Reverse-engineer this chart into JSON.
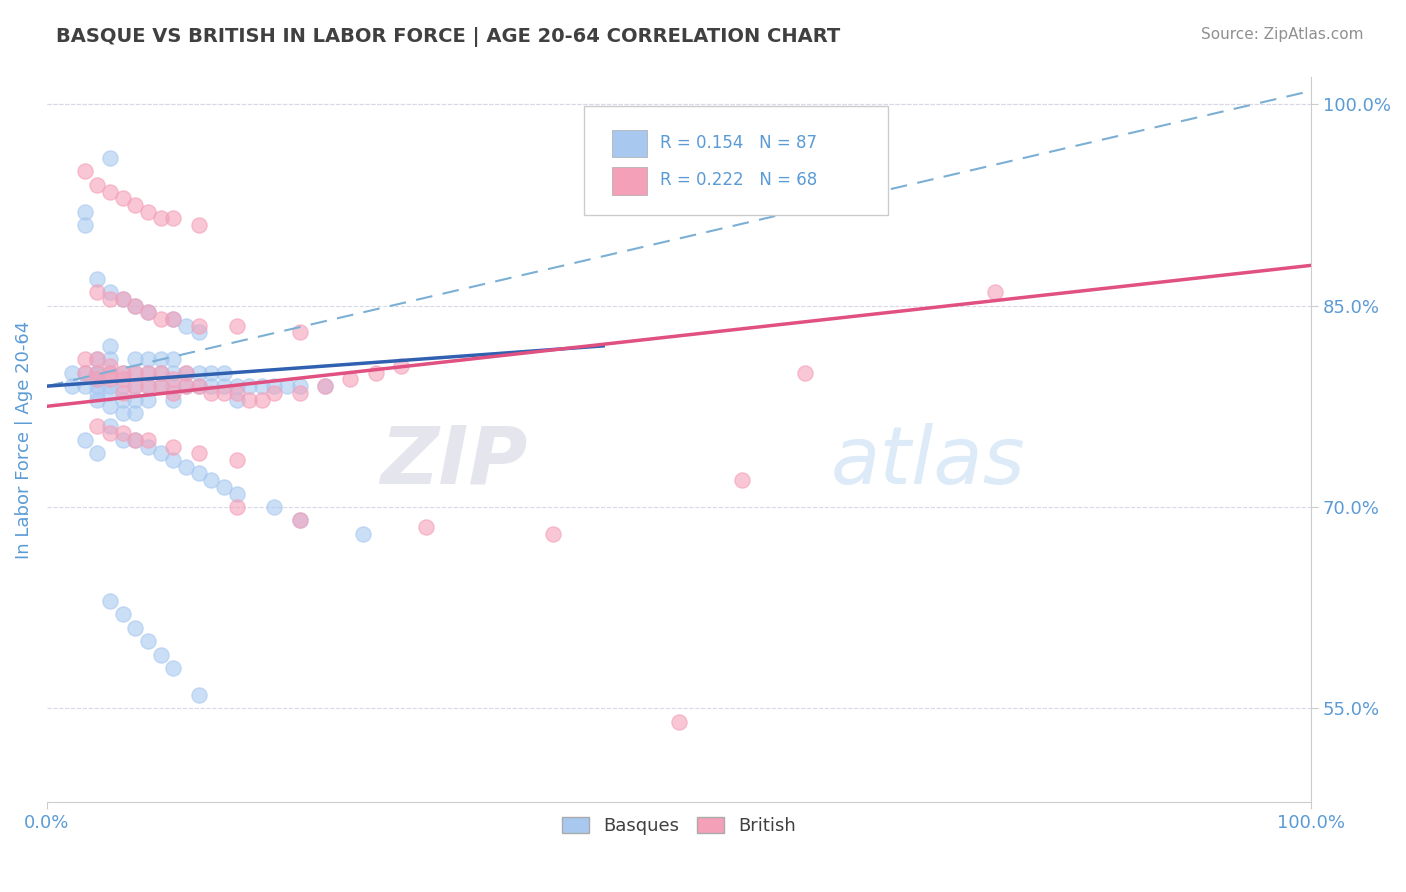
{
  "title": "BASQUE VS BRITISH IN LABOR FORCE | AGE 20-64 CORRELATION CHART",
  "source": "Source: ZipAtlas.com",
  "ylabel": "In Labor Force | Age 20-64",
  "xlim": [
    0.0,
    1.0
  ],
  "ylim": [
    0.48,
    1.02
  ],
  "x_ticks": [
    0.0,
    1.0
  ],
  "x_tick_labels": [
    "0.0%",
    "100.0%"
  ],
  "y_ticks": [
    0.55,
    0.7,
    0.85,
    1.0
  ],
  "y_tick_labels": [
    "55.0%",
    "70.0%",
    "85.0%",
    "100.0%"
  ],
  "basque_color": "#A8C8F0",
  "british_color": "#F4A0B8",
  "basque_line_color": "#3060B0",
  "british_line_color": "#E05080",
  "dashed_line_color": "#7BAFD4",
  "R_basque": 0.154,
  "N_basque": 87,
  "R_british": 0.222,
  "N_british": 68,
  "title_color": "#404040",
  "source_color": "#909090",
  "axis_label_color": "#5B9BD5",
  "tick_label_color": "#5B9BD5",
  "background_color": "#FFFFFF",
  "grid_color": "#D8D8E8",
  "basque_scatter_x": [
    0.02,
    0.02,
    0.03,
    0.03,
    0.03,
    0.03,
    0.04,
    0.04,
    0.04,
    0.04,
    0.04,
    0.04,
    0.04,
    0.05,
    0.05,
    0.05,
    0.05,
    0.05,
    0.05,
    0.05,
    0.06,
    0.06,
    0.06,
    0.06,
    0.07,
    0.07,
    0.07,
    0.07,
    0.07,
    0.08,
    0.08,
    0.08,
    0.08,
    0.09,
    0.09,
    0.09,
    0.1,
    0.1,
    0.1,
    0.1,
    0.11,
    0.11,
    0.12,
    0.12,
    0.13,
    0.13,
    0.14,
    0.14,
    0.15,
    0.15,
    0.16,
    0.17,
    0.18,
    0.19,
    0.2,
    0.22,
    0.03,
    0.04,
    0.05,
    0.06,
    0.07,
    0.08,
    0.09,
    0.1,
    0.11,
    0.12,
    0.13,
    0.14,
    0.04,
    0.05,
    0.06,
    0.07,
    0.08,
    0.1,
    0.11,
    0.12,
    0.15,
    0.18,
    0.2,
    0.25,
    0.05,
    0.06,
    0.07,
    0.08,
    0.09,
    0.1,
    0.12
  ],
  "basque_scatter_y": [
    0.8,
    0.79,
    0.92,
    0.91,
    0.8,
    0.79,
    0.8,
    0.795,
    0.785,
    0.78,
    0.81,
    0.8,
    0.79,
    0.82,
    0.81,
    0.8,
    0.79,
    0.785,
    0.775,
    0.96,
    0.8,
    0.79,
    0.78,
    0.77,
    0.81,
    0.8,
    0.79,
    0.78,
    0.77,
    0.81,
    0.8,
    0.79,
    0.78,
    0.81,
    0.8,
    0.79,
    0.81,
    0.8,
    0.79,
    0.78,
    0.8,
    0.79,
    0.8,
    0.79,
    0.8,
    0.79,
    0.8,
    0.79,
    0.79,
    0.78,
    0.79,
    0.79,
    0.79,
    0.79,
    0.79,
    0.79,
    0.75,
    0.74,
    0.76,
    0.75,
    0.75,
    0.745,
    0.74,
    0.735,
    0.73,
    0.725,
    0.72,
    0.715,
    0.87,
    0.86,
    0.855,
    0.85,
    0.845,
    0.84,
    0.835,
    0.83,
    0.71,
    0.7,
    0.69,
    0.68,
    0.63,
    0.62,
    0.61,
    0.6,
    0.59,
    0.58,
    0.56
  ],
  "british_scatter_x": [
    0.03,
    0.03,
    0.04,
    0.04,
    0.04,
    0.05,
    0.05,
    0.05,
    0.06,
    0.06,
    0.06,
    0.07,
    0.07,
    0.08,
    0.08,
    0.09,
    0.09,
    0.1,
    0.1,
    0.11,
    0.11,
    0.12,
    0.13,
    0.14,
    0.15,
    0.16,
    0.17,
    0.18,
    0.2,
    0.22,
    0.24,
    0.26,
    0.28,
    0.04,
    0.05,
    0.06,
    0.07,
    0.08,
    0.09,
    0.1,
    0.12,
    0.15,
    0.2,
    0.04,
    0.05,
    0.06,
    0.07,
    0.08,
    0.1,
    0.12,
    0.15,
    0.03,
    0.04,
    0.05,
    0.06,
    0.07,
    0.08,
    0.09,
    0.1,
    0.12,
    0.15,
    0.2,
    0.3,
    0.4,
    0.5,
    0.55,
    0.6,
    0.75
  ],
  "british_scatter_y": [
    0.81,
    0.8,
    0.81,
    0.8,
    0.795,
    0.805,
    0.8,
    0.795,
    0.8,
    0.795,
    0.785,
    0.8,
    0.79,
    0.8,
    0.79,
    0.8,
    0.79,
    0.795,
    0.785,
    0.8,
    0.79,
    0.79,
    0.785,
    0.785,
    0.785,
    0.78,
    0.78,
    0.785,
    0.785,
    0.79,
    0.795,
    0.8,
    0.805,
    0.86,
    0.855,
    0.855,
    0.85,
    0.845,
    0.84,
    0.84,
    0.835,
    0.835,
    0.83,
    0.76,
    0.755,
    0.755,
    0.75,
    0.75,
    0.745,
    0.74,
    0.735,
    0.95,
    0.94,
    0.935,
    0.93,
    0.925,
    0.92,
    0.915,
    0.915,
    0.91,
    0.7,
    0.69,
    0.685,
    0.68,
    0.54,
    0.72,
    0.8,
    0.86
  ],
  "basque_line_x": [
    0.0,
    0.44
  ],
  "basque_line_y": [
    0.79,
    0.82
  ],
  "british_line_x": [
    0.0,
    1.0
  ],
  "british_line_y": [
    0.775,
    0.88
  ],
  "dashed_line_x": [
    0.0,
    1.0
  ],
  "dashed_line_y": [
    0.79,
    1.01
  ]
}
